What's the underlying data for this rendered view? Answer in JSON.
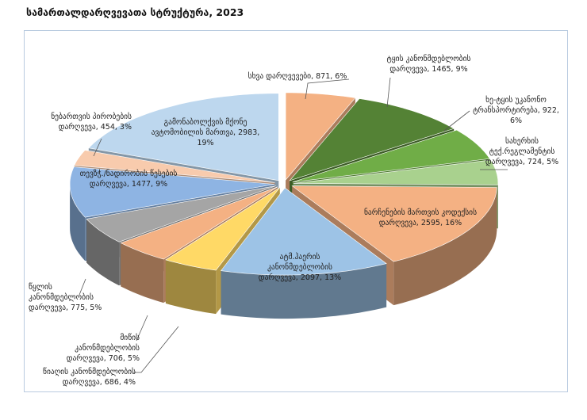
{
  "chart_data": {
    "type": "pie3d",
    "title": "სამართალდარღვევათა სტრუქტურა, 2023",
    "values": [
      871,
      1465,
      922,
      724,
      2595,
      2097,
      686,
      706,
      775,
      1477,
      454,
      2983
    ],
    "value_labels": [
      "სხვა დარღვევები, 871, 6%",
      "ტყის კანონმდებლობის დარღვევა, 1465, 9%",
      "ხე-ტყის უკანონო ტრანსპორტირება, 922, 6%",
      "სახერხის ტექ.რეგლამენტის დარღვევა, 724, 5%",
      "ნარჩენების მართვის კოდექსის დარღვევა, 2595, 16%",
      "ატმ.ჰაერის კანონმდებლობის დარღვევა, 2097, 13%",
      "წიაღის კანონმდებლობის დარღვევა, 686, 4%",
      "მიწის კანონმდებლობის დარღვევა, 706, 5%",
      "წყლის კანონმდებლობის დარღვევა, 775, 5%",
      "თევზჭ./ნადირობის წესების დარღვევა, 1477, 9%",
      "ნებართვის პირობების დარღვევა, 454, 3%",
      "გამონაბოლქვის მქონე ავტომობილის მართვა, 2983, 19%"
    ],
    "colors": [
      "#f4b183",
      "#548235",
      "#70ad47",
      "#a9d18e",
      "#f4b183",
      "#9dc3e6",
      "#ffd966",
      "#f4b183",
      "#a5a5a5",
      "#8eb4e3",
      "#f8cbad",
      "#bdd7ee"
    ]
  }
}
